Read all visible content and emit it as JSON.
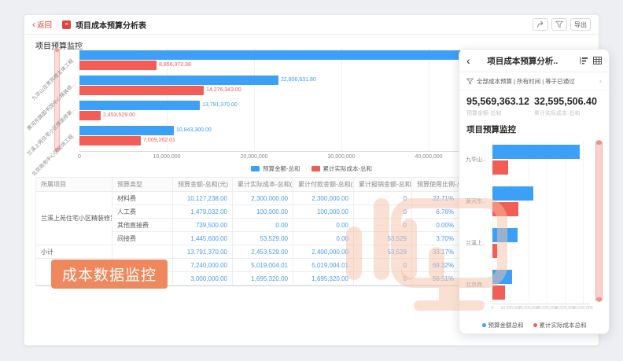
{
  "colors": {
    "blue": "#3ca0f6",
    "red": "#f25d55",
    "accent_red": "#e0433c",
    "badge": "#f0885e",
    "watermark": "#f6c2a8"
  },
  "main_window": {
    "toolbar": {
      "back_label": "返回",
      "title": "项目成本预算分析表",
      "export_label": "导出"
    },
    "section_title": "项目预算监控",
    "chart": {
      "categories": [
        "九华山庄贵宾楼主体工程",
        "黄河东路图书馆中心精装修…",
        "兰溪上苑住宅小区精装修第…",
        "北京商务中心区装饰工程"
      ],
      "series": [
        {
          "name": "预算金额-总和",
          "color": "#3ca0f6",
          "values": [
            48128061.32,
            22806631.8,
            13791370.0,
            10843300.0
          ],
          "labels": [
            "",
            "22,806,631.80",
            "13,791,370.00",
            "10,843,300.00"
          ]
        },
        {
          "name": "累计实际成本-总和",
          "color": "#f25d55",
          "values": [
            8856372.38,
            14276343.0,
            2453529.0,
            7009262.01
          ],
          "labels": [
            "8,856,372.38",
            "14,276,343.00",
            "2,453,529.00",
            "7,009,262.01"
          ]
        }
      ],
      "x_ticks": [
        "0",
        "10,000,000",
        "20,000,000",
        "30,000,000",
        "40,000,000"
      ]
    },
    "table": {
      "headers": [
        "所属项目",
        "预算类型",
        "预算金额-总和(元)",
        "累计实际成本-总和(元)",
        "累计付款金额-总和(元)",
        "累计报销金额-总和(元)",
        "预算使用比例-总和(%)"
      ],
      "rows": [
        {
          "project": "兰溪上苑住宅小区精装修第...",
          "span": 4,
          "type": "材料费",
          "cells": [
            "10,127,238.00",
            "2,300,000.00",
            "2,300,000.00",
            "0",
            "22.71%"
          ]
        },
        {
          "type": "人工费",
          "cells": [
            "1,479,032.00",
            "100,000.00",
            "100,000.00",
            "0",
            "6.76%"
          ]
        },
        {
          "type": "其他直接费",
          "cells": [
            "739,500.00",
            "0.00",
            "0.00",
            "0",
            "0.00%"
          ]
        },
        {
          "type": "间接费",
          "cells": [
            "1,445,600.00",
            "53,529.00",
            "0.00",
            "53,529",
            "3.70%"
          ]
        },
        {
          "project": "小计",
          "span": 1,
          "type": "",
          "cells": [
            "13,791,370.00",
            "2,453,529.00",
            "2,400,000.00",
            "53,529",
            "33.17%"
          ]
        },
        {
          "project": "",
          "span": 2,
          "type": "材料费",
          "cells": [
            "7,240,000.00",
            "5,019,004.01",
            "5,019,004.01",
            "0",
            "69.32%"
          ]
        },
        {
          "type": "",
          "cells": [
            "3,000,000.00",
            "1,695,320.00",
            "1,695,320.00",
            "0",
            "56.51%"
          ]
        }
      ]
    },
    "badge": "成本数据监控"
  },
  "panel": {
    "title": "项目成本预算分析..",
    "filter_text": "全部成本预算 | 所有时间 | 等于已通过",
    "stats": [
      {
        "value": "95,569,363.12",
        "label": "预算金额·总和"
      },
      {
        "value": "32,595,506.40",
        "label": "累计实际成本·总和"
      }
    ],
    "section_title": "项目预算监控",
    "chart": {
      "categories": [
        "九华山..",
        "黄河东..",
        "兰溪上..",
        "北京商.."
      ],
      "series": [
        {
          "name": "预算金额总和",
          "color": "#3ca0f6",
          "values": [
            48128061.32,
            22806631.8,
            13791370.0,
            10843300.0
          ]
        },
        {
          "name": "累计实际成本总和",
          "color": "#f25d55",
          "values": [
            8856372.38,
            14276343.0,
            2453529.0,
            7009262.01
          ]
        }
      ],
      "x_ticks": [
        "0",
        "10,000,000",
        "20,000,000",
        "30,000,000",
        "40,000,000",
        "50,000,000"
      ]
    }
  },
  "chart_data": [
    {
      "type": "bar",
      "orientation": "horizontal",
      "title": "项目预算监控",
      "categories": [
        "九华山庄贵宾楼主体工程",
        "黄河东路图书馆中心精装修…",
        "兰溪上苑住宅小区精装修第…",
        "北京商务中心区装饰工程"
      ],
      "series": [
        {
          "name": "预算金额-总和",
          "values": [
            48128061.32,
            22806631.8,
            13791370.0,
            10843300.0
          ]
        },
        {
          "name": "累计实际成本-总和",
          "values": [
            8856372.38,
            14276343.0,
            2453529.0,
            7009262.01
          ]
        }
      ],
      "xlabel": "",
      "ylabel": "",
      "xlim": [
        0,
        40000000
      ],
      "grid": true,
      "legend_position": "bottom"
    },
    {
      "type": "bar",
      "orientation": "horizontal",
      "title": "项目预算监控 (mobile)",
      "categories": [
        "九华山..",
        "黄河东..",
        "兰溪上..",
        "北京商.."
      ],
      "series": [
        {
          "name": "预算金额总和",
          "values": [
            48128061.32,
            22806631.8,
            13791370.0,
            10843300.0
          ]
        },
        {
          "name": "累计实际成本总和",
          "values": [
            8856372.38,
            14276343.0,
            2453529.0,
            7009262.01
          ]
        }
      ],
      "xlabel": "",
      "ylabel": "",
      "xlim": [
        0,
        50000000
      ],
      "grid": true,
      "legend_position": "bottom"
    }
  ]
}
